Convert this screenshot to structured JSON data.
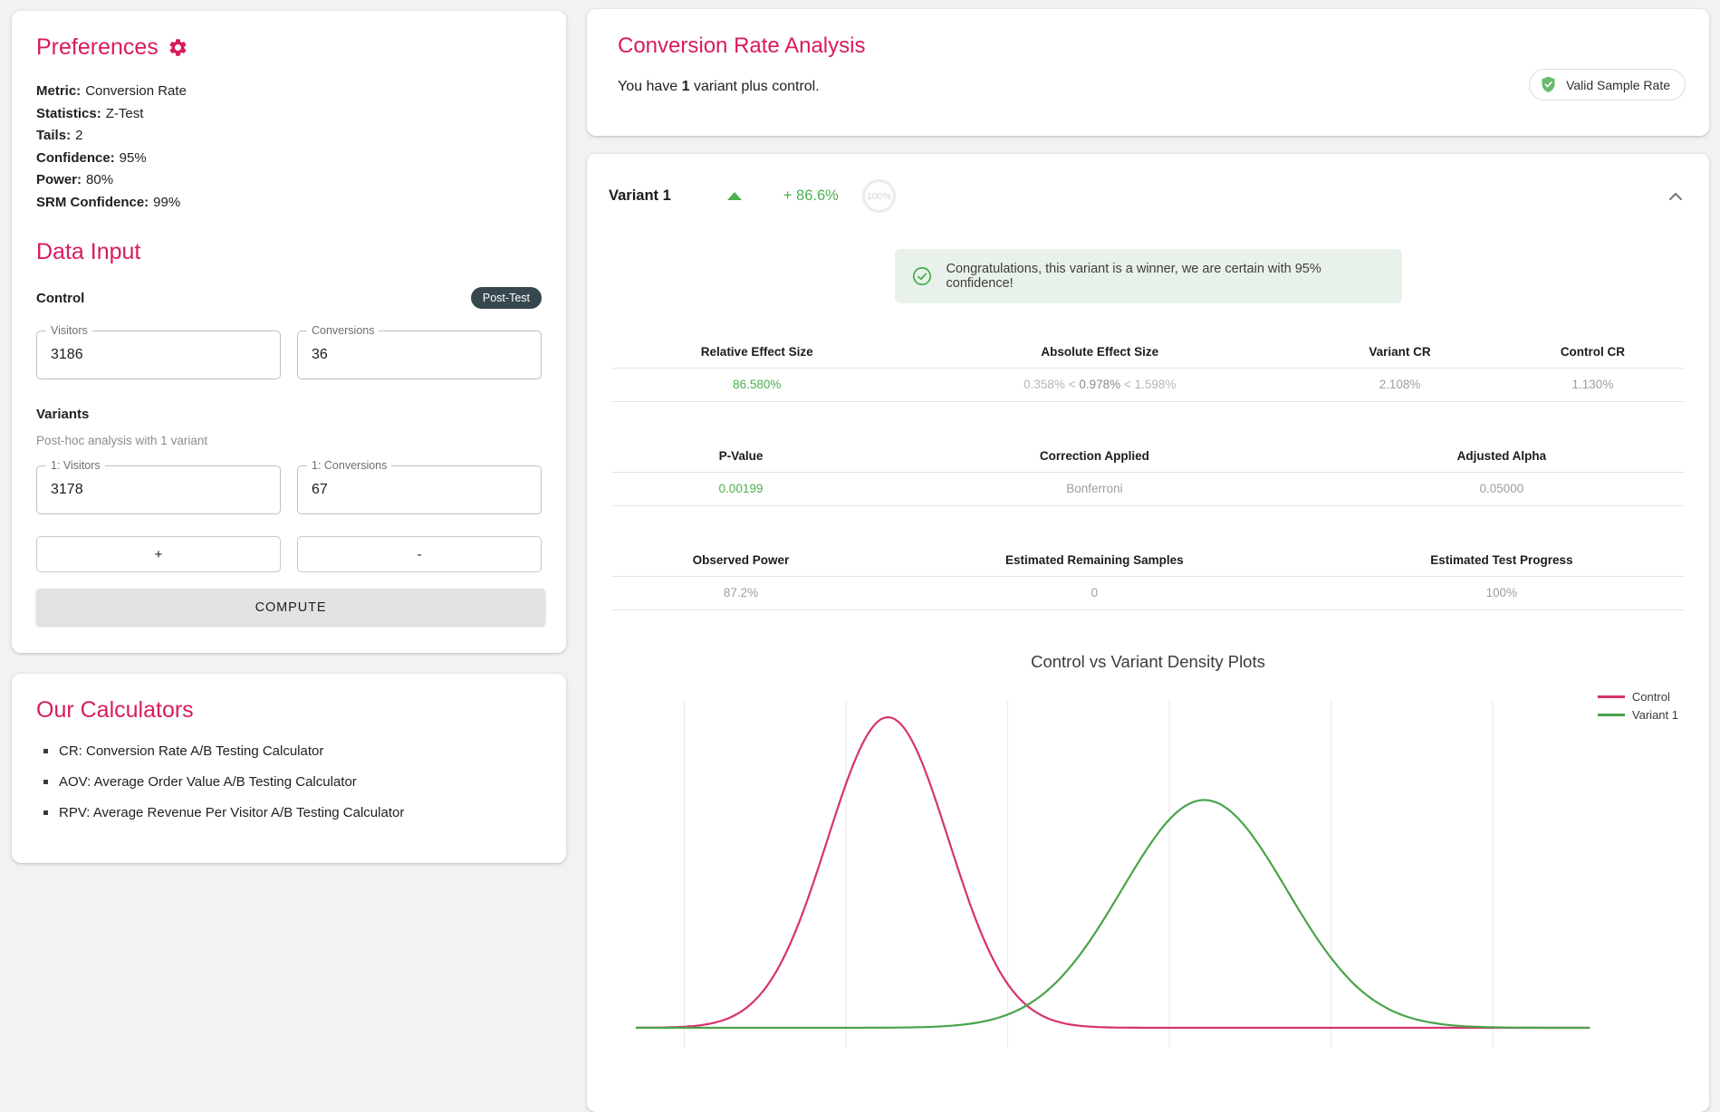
{
  "colors": {
    "accent_pink": "#d81b60",
    "positive_green": "#4caf50",
    "dark_badge": "#37474f",
    "banner_bg": "#e9f2ea"
  },
  "icons": {
    "preferences": "gear-icon",
    "valid_badge": "shield-check-icon",
    "winner_banner": "check-circle-icon",
    "variant_trend": "triangle-up-icon",
    "collapse": "chevron-up-icon",
    "list_bullet": "square-bullet-icon"
  },
  "preferences": {
    "title": "Preferences",
    "items": [
      {
        "label": "Metric:",
        "value": "Conversion Rate"
      },
      {
        "label": "Statistics:",
        "value": "Z-Test"
      },
      {
        "label": "Tails:",
        "value": "2"
      },
      {
        "label": "Confidence:",
        "value": "95%"
      },
      {
        "label": "Power:",
        "value": "80%"
      },
      {
        "label": "SRM Confidence:",
        "value": "99%"
      }
    ]
  },
  "data_input": {
    "title": "Data Input",
    "control_label": "Control",
    "post_test_badge": "Post-Test",
    "control_fields": [
      {
        "label": "Visitors",
        "value": "3186"
      },
      {
        "label": "Conversions",
        "value": "36"
      }
    ],
    "variants_label": "Variants",
    "variants_note": "Post-hoc analysis with 1 variant",
    "variant_fields": [
      {
        "label": "1: Visitors",
        "value": "3178"
      },
      {
        "label": "1: Conversions",
        "value": "67"
      }
    ],
    "add_button": "+",
    "remove_button": "-",
    "compute_button": "COMPUTE"
  },
  "calculators": {
    "title": "Our Calculators",
    "items": [
      "CR: Conversion Rate A/B Testing Calculator",
      "AOV: Average Order Value A/B Testing Calculator",
      "RPV: Average Revenue Per Visitor A/B Testing Calculator"
    ]
  },
  "analysis": {
    "title": "Conversion Rate Analysis",
    "subtitle_prefix": "You have ",
    "subtitle_bold": "1",
    "subtitle_suffix": " variant plus control.",
    "valid_badge": "Valid Sample Rate"
  },
  "variant": {
    "name": "Variant 1",
    "lift": "+ 86.6%",
    "progress_ring": "100%",
    "banner": "Congratulations, this variant is a winner, we are certain with 95% confidence!",
    "tables": [
      {
        "headers": [
          "Relative Effect Size",
          "Absolute Effect Size",
          "Variant CR",
          "Control CR"
        ],
        "relative_effect": "86.580%",
        "ci": {
          "low": "0.358%",
          "sep": "<",
          "mid": "0.978%",
          "sep2": "<",
          "high": "1.598%"
        },
        "variant_cr": "2.108%",
        "control_cr": "1.130%"
      },
      {
        "headers": [
          "P-Value",
          "Correction Applied",
          "Adjusted Alpha"
        ],
        "values": [
          "0.00199",
          "Bonferroni",
          "0.05000"
        ]
      },
      {
        "headers": [
          "Observed Power",
          "Estimated Remaining Samples",
          "Estimated Test Progress"
        ],
        "values": [
          "87.2%",
          "0",
          "100%"
        ]
      }
    ]
  },
  "chart_data": {
    "type": "line",
    "title": "Control vs Variant Density Plots",
    "subtitle": "",
    "xlabel": "",
    "ylabel": "",
    "x_range": [
      0.35,
      3.3
    ],
    "gridlines_x": [
      0.5,
      1.0,
      1.5,
      2.0,
      2.5,
      3.0
    ],
    "grid": "vertical-only",
    "axis_tick_labels": "none",
    "legend_position": "top-right",
    "series": [
      {
        "name": "Control",
        "distribution": "normal-density",
        "mean": 1.13,
        "sd": 0.187,
        "color": "#d6336c"
      },
      {
        "name": "Variant 1",
        "distribution": "normal-density",
        "mean": 2.108,
        "sd": 0.255,
        "color": "#4aa34a"
      }
    ]
  }
}
